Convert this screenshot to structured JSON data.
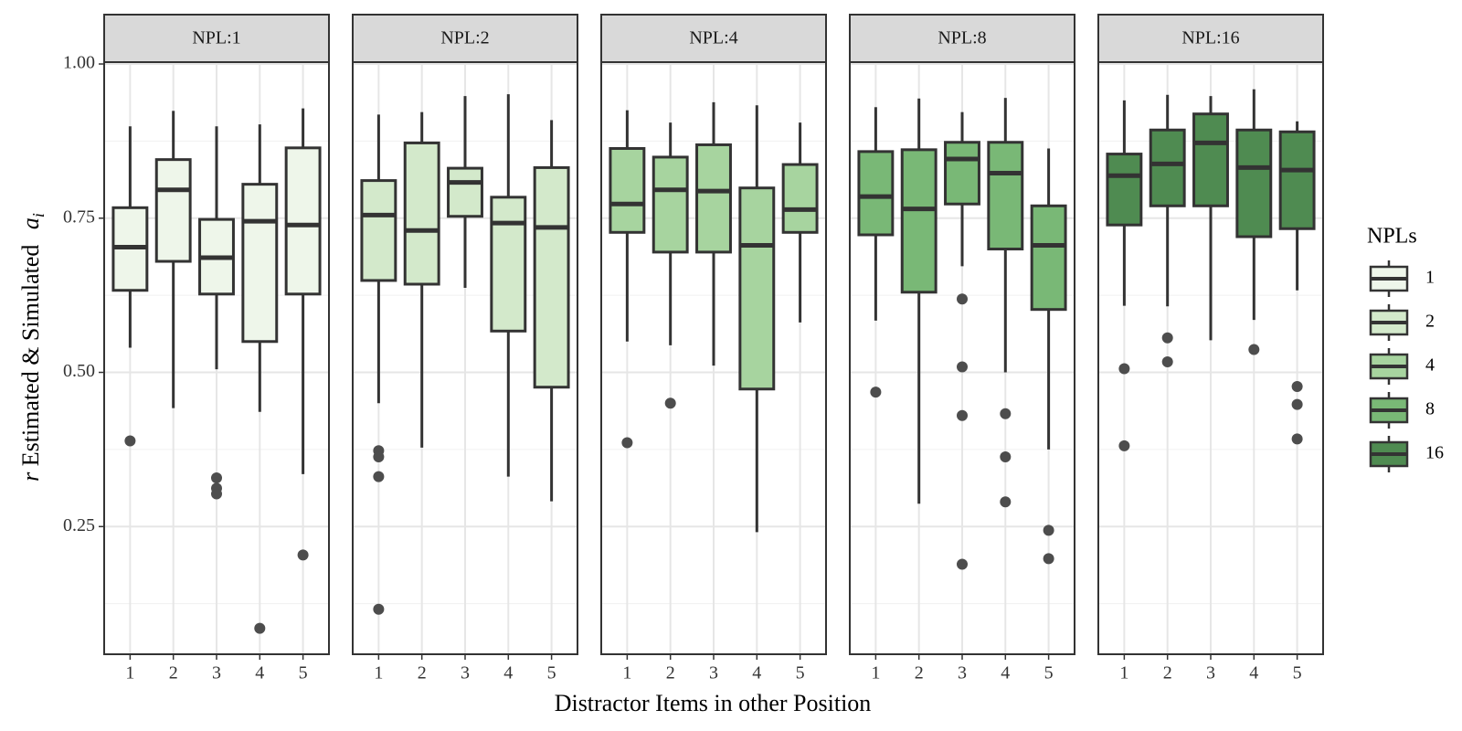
{
  "chart_data": {
    "type": "boxplot",
    "ylabel_parts": [
      "r",
      "Estimated & Simulated",
      "a",
      "i"
    ],
    "xlabel": "Distractor Items in other Position",
    "legend_title": "NPLs",
    "legend_position": "right",
    "grid": true,
    "categories": [
      "1",
      "2",
      "3",
      "4",
      "5"
    ],
    "ylim": [
      0.043,
      1.003
    ],
    "yticks": [
      {
        "value": 0.25,
        "label": "0.25"
      },
      {
        "value": 0.5,
        "label": "0.50"
      },
      {
        "value": 0.75,
        "label": "0.75"
      },
      {
        "value": 1,
        "label": "1.00"
      }
    ],
    "yminorticks": [
      0.125,
      0.375,
      0.625,
      0.875
    ],
    "series": [
      {
        "name": "1",
        "facet": "NPL:1",
        "color": "#eef6ea",
        "boxes": [
          {
            "low": 0.54,
            "q1": 0.633,
            "median": 0.703,
            "q3": 0.767,
            "high": 0.899,
            "outliers": [
              0.389
            ]
          },
          {
            "low": 0.442,
            "q1": 0.68,
            "median": 0.796,
            "q3": 0.845,
            "high": 0.924,
            "outliers": []
          },
          {
            "low": 0.505,
            "q1": 0.627,
            "median": 0.686,
            "q3": 0.748,
            "high": 0.899,
            "outliers": [
              0.329,
              0.312,
              0.303
            ]
          },
          {
            "low": 0.436,
            "q1": 0.55,
            "median": 0.745,
            "q3": 0.805,
            "high": 0.902,
            "outliers": [
              0.085
            ]
          },
          {
            "low": 0.335,
            "q1": 0.627,
            "median": 0.739,
            "q3": 0.864,
            "high": 0.928,
            "outliers": [
              0.204
            ]
          }
        ]
      },
      {
        "name": "2",
        "facet": "NPL:2",
        "color": "#d3e9cb",
        "boxes": [
          {
            "low": 0.45,
            "q1": 0.649,
            "median": 0.755,
            "q3": 0.811,
            "high": 0.918,
            "outliers": [
              0.373,
              0.363,
              0.331,
              0.116
            ]
          },
          {
            "low": 0.378,
            "q1": 0.643,
            "median": 0.73,
            "q3": 0.872,
            "high": 0.922,
            "outliers": []
          },
          {
            "low": 0.637,
            "q1": 0.753,
            "median": 0.808,
            "q3": 0.831,
            "high": 0.948,
            "outliers": []
          },
          {
            "low": 0.331,
            "q1": 0.567,
            "median": 0.742,
            "q3": 0.784,
            "high": 0.951,
            "outliers": []
          },
          {
            "low": 0.291,
            "q1": 0.476,
            "median": 0.735,
            "q3": 0.832,
            "high": 0.909,
            "outliers": []
          }
        ]
      },
      {
        "name": "4",
        "facet": "NPL:4",
        "color": "#a7d49f",
        "boxes": [
          {
            "low": 0.55,
            "q1": 0.727,
            "median": 0.773,
            "q3": 0.863,
            "high": 0.925,
            "outliers": [
              0.386
            ]
          },
          {
            "low": 0.544,
            "q1": 0.695,
            "median": 0.796,
            "q3": 0.849,
            "high": 0.905,
            "outliers": [
              0.45
            ]
          },
          {
            "low": 0.511,
            "q1": 0.695,
            "median": 0.794,
            "q3": 0.869,
            "high": 0.938,
            "outliers": []
          },
          {
            "low": 0.241,
            "q1": 0.473,
            "median": 0.706,
            "q3": 0.799,
            "high": 0.933,
            "outliers": []
          },
          {
            "low": 0.581,
            "q1": 0.727,
            "median": 0.764,
            "q3": 0.837,
            "high": 0.905,
            "outliers": []
          }
        ]
      },
      {
        "name": "8",
        "facet": "NPL:8",
        "color": "#79b876",
        "boxes": [
          {
            "low": 0.584,
            "q1": 0.723,
            "median": 0.785,
            "q3": 0.858,
            "high": 0.93,
            "outliers": [
              0.468
            ]
          },
          {
            "low": 0.287,
            "q1": 0.63,
            "median": 0.765,
            "q3": 0.861,
            "high": 0.944,
            "outliers": []
          },
          {
            "low": 0.672,
            "q1": 0.773,
            "median": 0.846,
            "q3": 0.873,
            "high": 0.922,
            "outliers": [
              0.619,
              0.509,
              0.43,
              0.189
            ]
          },
          {
            "low": 0.5,
            "q1": 0.7,
            "median": 0.823,
            "q3": 0.873,
            "high": 0.945,
            "outliers": [
              0.433,
              0.363,
              0.29
            ]
          },
          {
            "low": 0.375,
            "q1": 0.602,
            "median": 0.706,
            "q3": 0.77,
            "high": 0.863,
            "outliers": [
              0.244,
              0.198
            ]
          }
        ]
      },
      {
        "name": "16",
        "facet": "NPL:16",
        "color": "#4f8b51",
        "boxes": [
          {
            "low": 0.608,
            "q1": 0.739,
            "median": 0.819,
            "q3": 0.854,
            "high": 0.941,
            "outliers": [
              0.506,
              0.381
            ]
          },
          {
            "low": 0.607,
            "q1": 0.77,
            "median": 0.838,
            "q3": 0.893,
            "high": 0.95,
            "outliers": [
              0.556,
              0.517
            ]
          },
          {
            "low": 0.552,
            "q1": 0.77,
            "median": 0.872,
            "q3": 0.919,
            "high": 0.948,
            "outliers": []
          },
          {
            "low": 0.585,
            "q1": 0.72,
            "median": 0.832,
            "q3": 0.893,
            "high": 0.959,
            "outliers": [
              0.537
            ]
          },
          {
            "low": 0.633,
            "q1": 0.733,
            "median": 0.828,
            "q3": 0.89,
            "high": 0.907,
            "outliers": [
              0.477,
              0.448,
              0.392
            ]
          }
        ]
      }
    ]
  }
}
